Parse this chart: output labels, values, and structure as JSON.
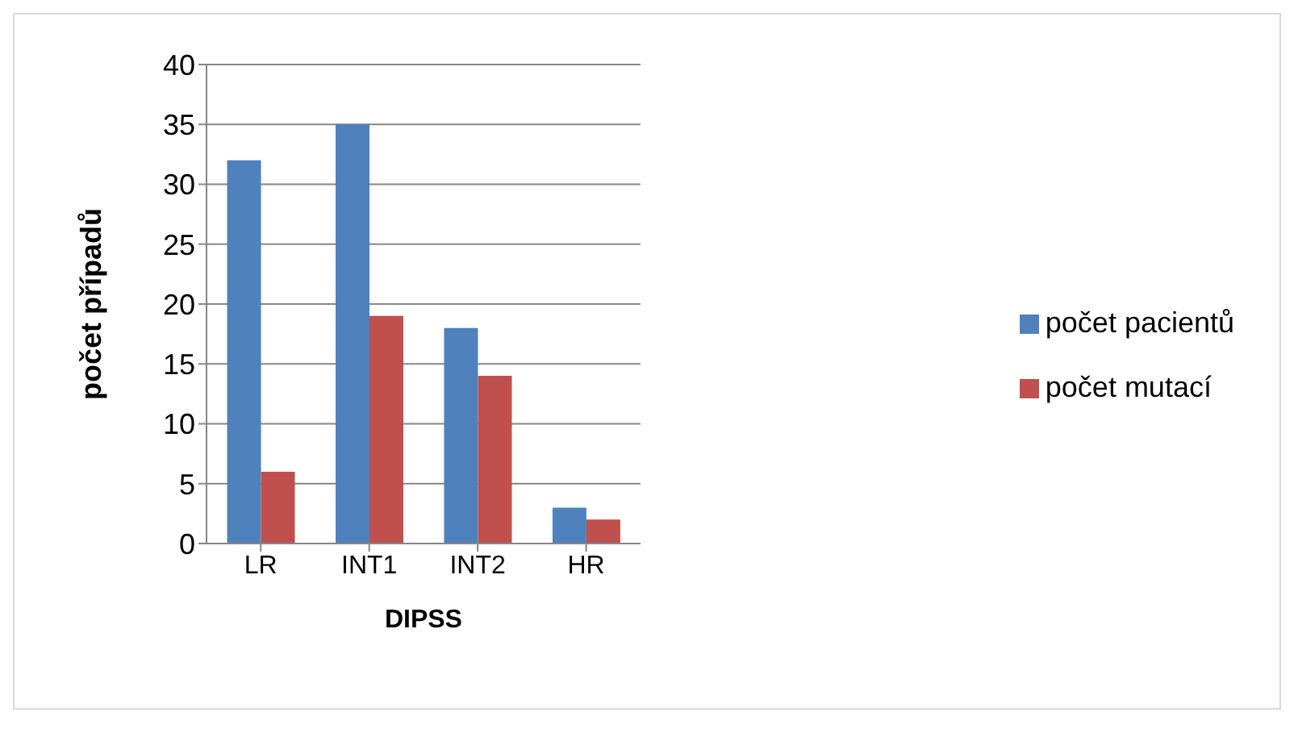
{
  "chart_data": {
    "type": "bar",
    "xlabel": "DIPSS",
    "ylabel": "počet případů",
    "categories": [
      "LR",
      "INT1",
      "INT2",
      "HR"
    ],
    "series": [
      {
        "name": "počet pacientů",
        "color": "#4f81bd",
        "values": [
          32,
          35,
          18,
          3
        ]
      },
      {
        "name": "počet mutací",
        "color": "#c0504d",
        "values": [
          6,
          19,
          14,
          2
        ]
      }
    ],
    "ylim": [
      0,
      40
    ],
    "yticks": [
      0,
      5,
      10,
      15,
      20,
      25,
      30,
      35,
      40
    ],
    "grid": "y",
    "legend": "right"
  }
}
